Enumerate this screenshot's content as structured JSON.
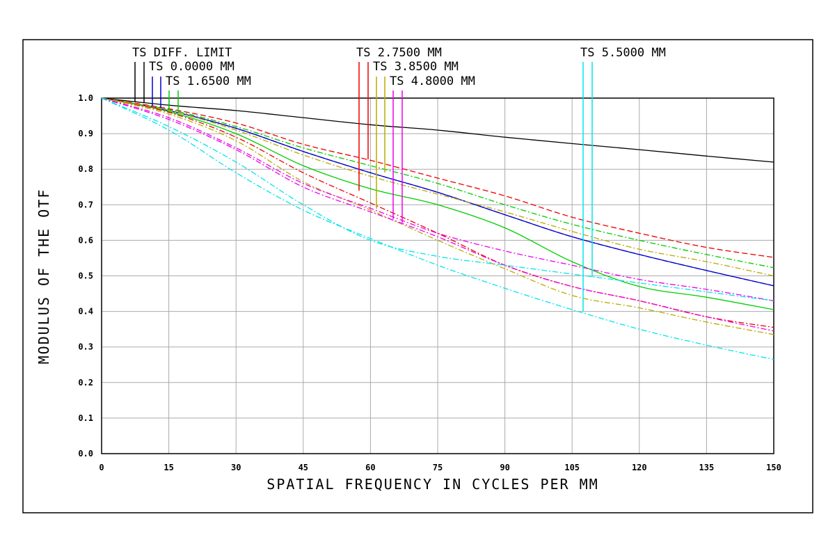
{
  "chart_data": {
    "type": "line",
    "xlabel": "SPATIAL FREQUENCY IN CYCLES PER MM",
    "ylabel": "MODULUS OF THE OTF",
    "xlim": [
      0,
      150
    ],
    "ylim": [
      0,
      1.0
    ],
    "x_ticks": [
      "0",
      "15",
      "30",
      "45",
      "60",
      "75",
      "90",
      "105",
      "120",
      "135",
      "150"
    ],
    "y_ticks": [
      "0.0",
      "0.1",
      "0.2",
      "0.3",
      "0.4",
      "0.5",
      "0.6",
      "0.7",
      "0.8",
      "0.9",
      "1.0"
    ],
    "grid": true,
    "legend": [
      {
        "label": "TS DIFF. LIMIT",
        "colors": [
          "#000000",
          "#000000"
        ]
      },
      {
        "label": "TS 0.0000 MM",
        "colors": [
          "#0000cc",
          "#0000cc"
        ]
      },
      {
        "label": "TS 1.6500 MM",
        "colors": [
          "#00cc00",
          "#00cc00"
        ]
      },
      {
        "label": "TS 2.7500 MM",
        "colors": [
          "#ee0000",
          "#ee0000"
        ]
      },
      {
        "label": "TS 3.8500 MM",
        "colors": [
          "#bbaa00",
          "#bbaa00"
        ]
      },
      {
        "label": "TS 4.8000 MM",
        "colors": [
          "#ee00ee",
          "#ee00ee"
        ]
      },
      {
        "label": "TS 5.5000 MM",
        "colors": [
          "#00e5ee",
          "#00e5ee"
        ]
      }
    ],
    "x": [
      0,
      15,
      30,
      45,
      60,
      75,
      90,
      105,
      120,
      135,
      150
    ],
    "series": [
      {
        "color": "#000000",
        "dash": "",
        "values": [
          1.0,
          0.98,
          0.965,
          0.945,
          0.925,
          0.91,
          0.89,
          0.872,
          0.855,
          0.837,
          0.82
        ]
      },
      {
        "color": "#0000cc",
        "dash": "",
        "values": [
          1.0,
          0.965,
          0.915,
          0.85,
          0.79,
          0.735,
          0.672,
          0.61,
          0.56,
          0.515,
          0.472
        ]
      },
      {
        "color": "#0000cc",
        "dash": "8,4",
        "values": [
          1.0,
          0.965,
          0.915,
          0.85,
          0.79,
          0.735,
          0.672,
          0.61,
          0.56,
          0.515,
          0.472
        ]
      },
      {
        "color": "#00cc00",
        "dash": "",
        "values": [
          1.0,
          0.962,
          0.9,
          0.81,
          0.745,
          0.7,
          0.635,
          0.54,
          0.47,
          0.44,
          0.405
        ]
      },
      {
        "color": "#00cc00",
        "dash": "8,3,2,3",
        "values": [
          1.0,
          0.968,
          0.92,
          0.86,
          0.81,
          0.76,
          0.7,
          0.645,
          0.6,
          0.56,
          0.523
        ]
      },
      {
        "color": "#ee0000",
        "dash": "8,4",
        "values": [
          1.0,
          0.97,
          0.93,
          0.87,
          0.825,
          0.775,
          0.725,
          0.665,
          0.62,
          0.58,
          0.552
        ]
      },
      {
        "color": "#ee0000",
        "dash": "8,3,2,3",
        "values": [
          1.0,
          0.96,
          0.89,
          0.79,
          0.705,
          0.62,
          0.53,
          0.47,
          0.43,
          0.385,
          0.355
        ]
      },
      {
        "color": "#bbaa00",
        "dash": "8,3,2,3",
        "values": [
          1.0,
          0.965,
          0.91,
          0.84,
          0.78,
          0.73,
          0.68,
          0.625,
          0.575,
          0.54,
          0.5
        ]
      },
      {
        "color": "#bbaa00",
        "dash": "8,3,2,3",
        "values": [
          1.0,
          0.955,
          0.88,
          0.765,
          0.685,
          0.6,
          0.52,
          0.445,
          0.41,
          0.37,
          0.335
        ]
      },
      {
        "color": "#ee00ee",
        "dash": "8,3,2,3",
        "values": [
          1.0,
          0.945,
          0.86,
          0.76,
          0.69,
          0.62,
          0.57,
          0.53,
          0.49,
          0.462,
          0.43
        ]
      },
      {
        "color": "#ee00ee",
        "dash": "8,3,2,3",
        "values": [
          1.0,
          0.94,
          0.855,
          0.75,
          0.68,
          0.61,
          0.53,
          0.47,
          0.43,
          0.385,
          0.345
        ]
      },
      {
        "color": "#00e5ee",
        "dash": "8,3,2,3",
        "values": [
          1.0,
          0.92,
          0.82,
          0.7,
          0.6,
          0.555,
          0.53,
          0.505,
          0.48,
          0.455,
          0.43
        ]
      },
      {
        "color": "#00e5ee",
        "dash": "8,3,2,3",
        "values": [
          1.0,
          0.91,
          0.79,
          0.685,
          0.605,
          0.53,
          0.465,
          0.405,
          0.35,
          0.305,
          0.265
        ]
      }
    ]
  }
}
